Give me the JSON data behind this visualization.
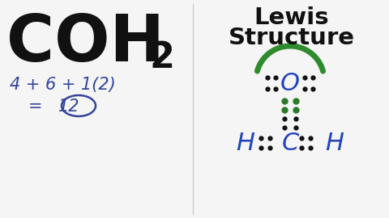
{
  "bg_color": "#f5f5f5",
  "formula_color": "#111111",
  "calc_color": "#334499",
  "circle_color": "#334499",
  "lewis_title_color": "#111111",
  "dot_color_black": "#111111",
  "dot_color_green": "#2a7a2a",
  "atom_color": "#2244bb",
  "arc_color": "#2e8b2e",
  "separator_color": "#cccccc",
  "calc_line1": "4 + 6 + 1(2)",
  "calc_line2": "= ",
  "calc_12": "12",
  "lewis_title1": "Lewis",
  "lewis_title2": "Structure"
}
